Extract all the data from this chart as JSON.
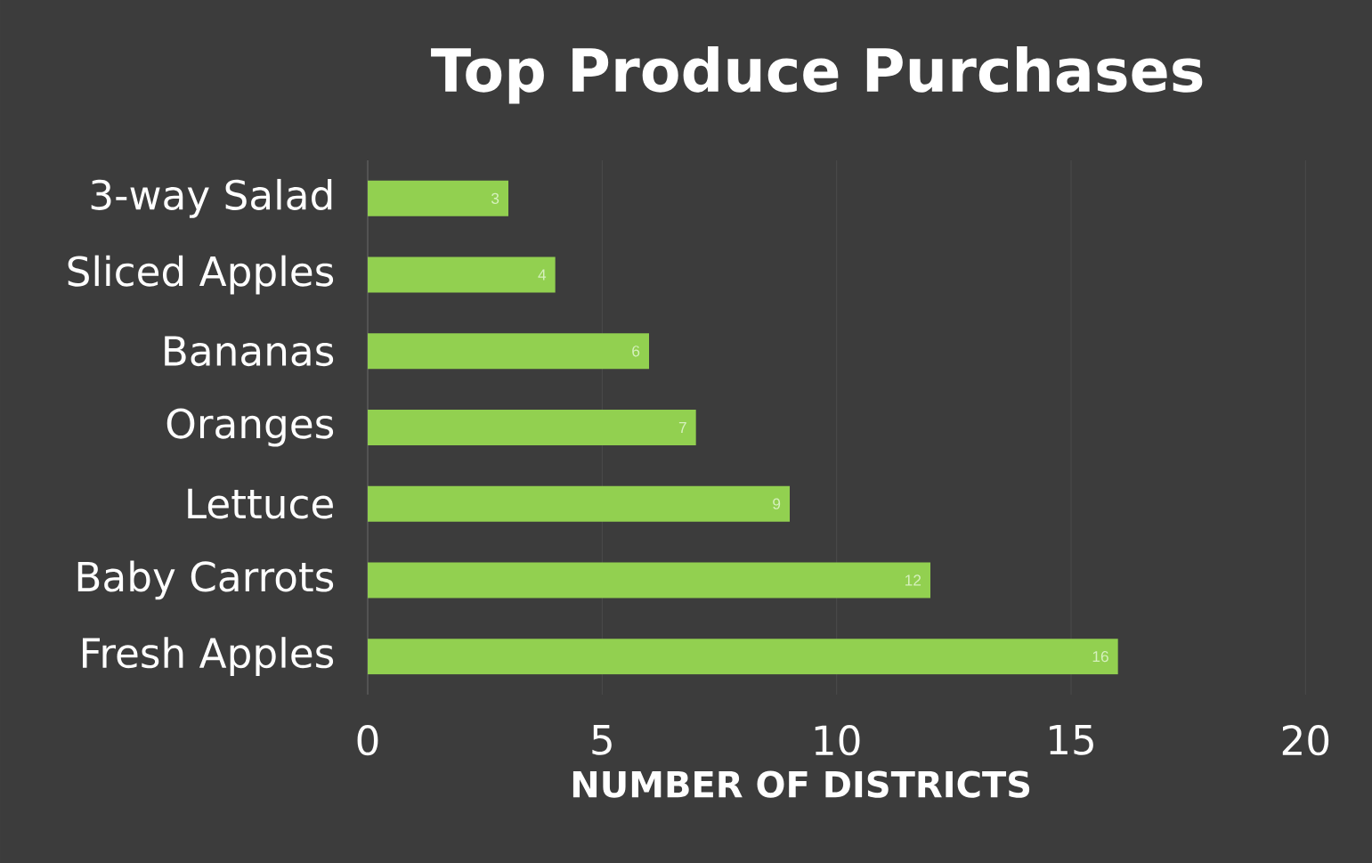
{
  "chart_data": {
    "type": "bar",
    "orientation": "horizontal",
    "title": "Top Produce Purchases",
    "xlabel": "NUMBER OF DISTRICTS",
    "categories": [
      "3-way Salad",
      "Sliced Apples",
      "Bananas",
      "Oranges",
      "Lettuce",
      "Baby Carrots",
      "Fresh Apples"
    ],
    "values": [
      3,
      4,
      6,
      7,
      9,
      12,
      16
    ],
    "color": "#92d050",
    "xlim": [
      0,
      20
    ],
    "xticks": [
      0,
      5,
      10,
      15,
      20
    ],
    "grid": "x",
    "data_labels": true
  }
}
